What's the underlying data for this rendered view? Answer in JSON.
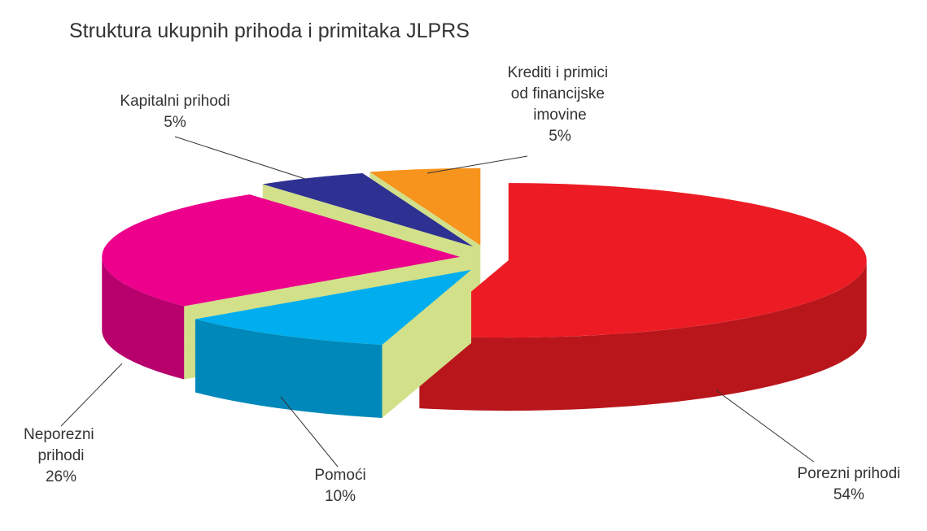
{
  "chart_data": {
    "type": "pie3d",
    "title": "Struktura ukupnih prihoda i primitaka JLPRS",
    "categories": [
      "Porezni prihodi",
      "Pomoći",
      "Neporezni prihodi",
      "Kapitalni prihodi",
      "Krediti i primici od financijske imovine"
    ],
    "values": [
      54,
      10,
      26,
      5,
      5
    ],
    "value_labels": [
      "54%",
      "10%",
      "26%",
      "5%",
      "5%"
    ],
    "colors": [
      "#ed1c24",
      "#00aeef",
      "#ec008c",
      "#2e3192",
      "#f7941d"
    ]
  }
}
